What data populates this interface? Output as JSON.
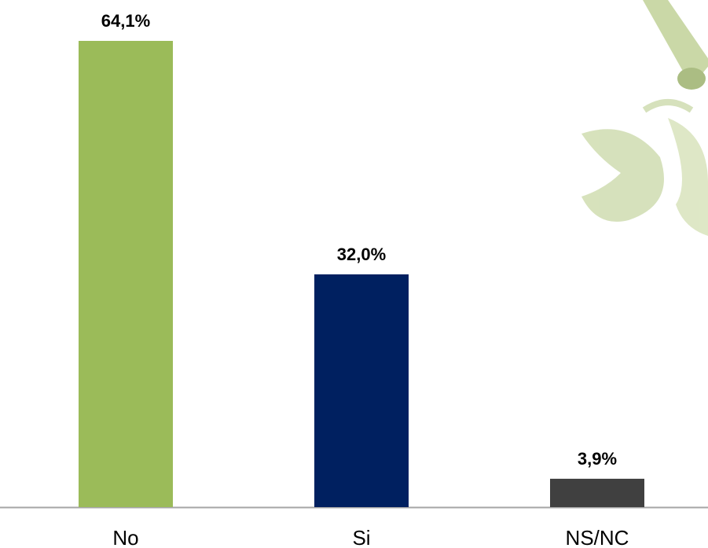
{
  "chart_data": {
    "type": "bar",
    "categories": [
      "No",
      "Si",
      "NS/NC"
    ],
    "values": [
      64.1,
      32.0,
      3.9
    ],
    "value_labels": [
      "64,1%",
      "32,0%",
      "3,9%"
    ],
    "colors": [
      "#9bbb59",
      "#002060",
      "#404040"
    ]
  }
}
